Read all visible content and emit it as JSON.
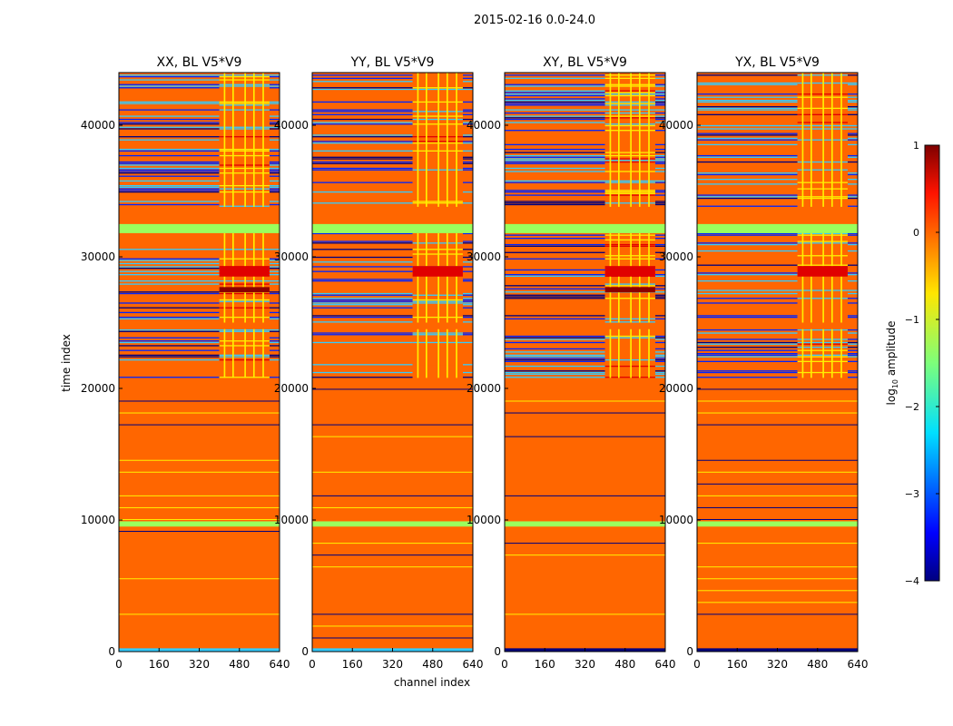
{
  "suptitle": "2015-02-16 0.0-24.0",
  "ylabel": "time index",
  "xlabel": "channel index",
  "colorbar": {
    "label_prefix": "log",
    "label_sub": "10",
    "label_suffix": " amplitude",
    "range": [
      -4,
      1
    ],
    "tick_labels": [
      "1",
      "0",
      "−1",
      "−2",
      "−3",
      "−4"
    ],
    "colormap": "jet"
  },
  "colors": {
    "orange": "#ff6600",
    "yellow": "#ffef00",
    "green": "#9aff5d",
    "cyan": "#33ccff",
    "blue": "#0024ff",
    "navy": "#00007f",
    "red": "#e00000",
    "darkred": "#8b0000"
  },
  "chart_data": {
    "type": "heatmap",
    "x_range": [
      0,
      640
    ],
    "y_range": [
      0,
      44000
    ],
    "x_tick_values": [
      0,
      160,
      320,
      480,
      640
    ],
    "x_tick_labels": [
      "0",
      "160",
      "320",
      "480",
      "640"
    ],
    "y_tick_values": [
      0,
      10000,
      20000,
      30000,
      40000
    ],
    "y_tick_labels": [
      "0",
      "10000",
      "20000",
      "30000",
      "40000"
    ],
    "panels": [
      {
        "title": "XX, BL V5*V9"
      },
      {
        "title": "YY, BL V5*V9"
      },
      {
        "title": "XY, BL V5*V9"
      },
      {
        "title": "YX, BL V5*V9"
      }
    ],
    "description_bands": [
      {
        "from": 0,
        "to": 300,
        "channels": "0-640",
        "value": "orange",
        "note": "noisy blue/cyan base"
      },
      {
        "from": 300,
        "to": 20800,
        "channels": "0-640",
        "value": "orange (~0.2 log10)"
      },
      {
        "from": 9500,
        "to": 9900,
        "channels": "0-640",
        "value": "green (~-1)"
      },
      {
        "from": 20800,
        "to": 31800,
        "channels": "0-400",
        "value": "mixed blue/cyan/orange bands"
      },
      {
        "from": 20800,
        "to": 31800,
        "channels": "400-600",
        "value": "orange/yellow/red (~0-1)"
      },
      {
        "from": 31800,
        "to": 33800,
        "channels": "0-640",
        "value": "green / orange"
      },
      {
        "from": 33800,
        "to": 44000,
        "channels": "0-400",
        "value": "mixed blue/cyan/orange bands"
      },
      {
        "from": 33800,
        "to": 44000,
        "channels": "400-600",
        "value": "orange/yellow/red"
      }
    ]
  }
}
